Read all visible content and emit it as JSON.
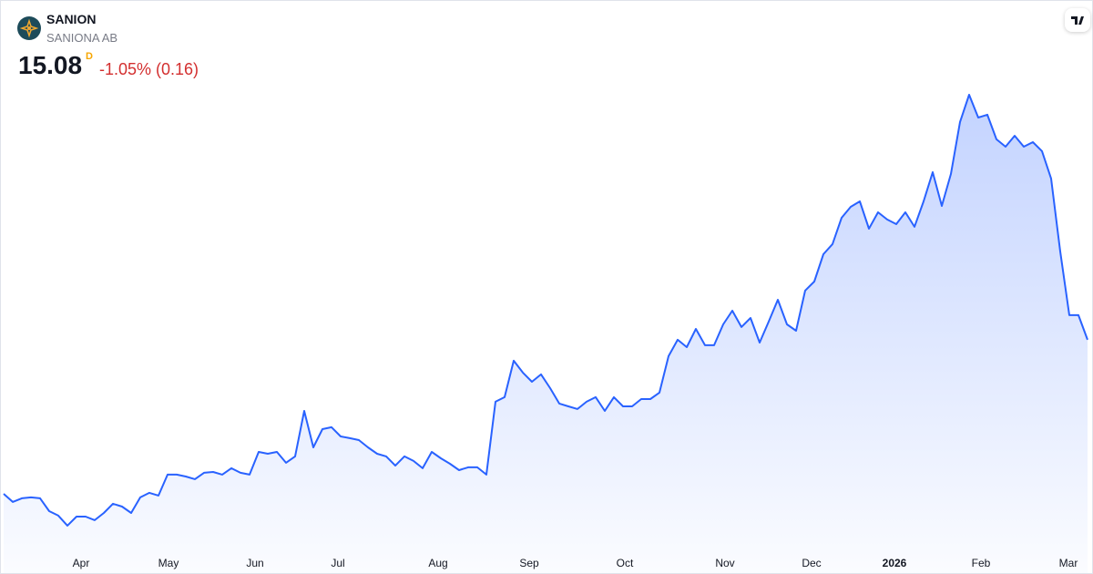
{
  "header": {
    "symbol": "SANION",
    "name": "SANIONA AB",
    "price": "15.08",
    "interval": "D",
    "change": "-1.05% (0.16)"
  },
  "chart_data": {
    "type": "area",
    "color": "#2962ff",
    "values": [
      5.2,
      4.68,
      4.91,
      4.97,
      4.91,
      4.09,
      3.8,
      3.16,
      3.74,
      3.74,
      3.51,
      3.97,
      4.56,
      4.38,
      3.97,
      4.97,
      5.26,
      5.09,
      6.43,
      6.43,
      6.31,
      6.14,
      6.55,
      6.6,
      6.43,
      6.84,
      6.55,
      6.43,
      7.89,
      7.77,
      7.89,
      7.19,
      7.6,
      10.52,
      8.18,
      9.35,
      9.47,
      8.88,
      8.77,
      8.65,
      8.18,
      7.77,
      7.6,
      7.01,
      7.6,
      7.31,
      6.84,
      7.89,
      7.48,
      7.13,
      6.72,
      6.9,
      6.9,
      6.43,
      11.11,
      11.4,
      13.74,
      12.98,
      12.39,
      12.86,
      11.98,
      10.99,
      10.81,
      10.64,
      11.11,
      11.4,
      10.52,
      11.4,
      10.81,
      10.81,
      11.28,
      11.28,
      11.69,
      14.03,
      15.08,
      14.61,
      15.78,
      14.73,
      14.73,
      16.07,
      16.95,
      15.9,
      16.48,
      14.9,
      16.25,
      17.65,
      16.07,
      15.66,
      18.24,
      18.82,
      20.57,
      21.22,
      22.91,
      23.61,
      23.96,
      22.21,
      23.26,
      22.8,
      22.5,
      23.26,
      22.33,
      23.96,
      25.83,
      23.67,
      25.72,
      29.05,
      30.8,
      29.34,
      29.52,
      27.94,
      27.47,
      28.17,
      27.47,
      27.76,
      27.18,
      25.43,
      20.75,
      16.66,
      16.66,
      15.08
    ],
    "xlim": [
      0,
      119
    ],
    "xticks": [
      {
        "value": 8.5,
        "label": "Apr"
      },
      {
        "value": 18.1,
        "label": "May"
      },
      {
        "value": 27.6,
        "label": "Jun"
      },
      {
        "value": 36.7,
        "label": "Jul"
      },
      {
        "value": 47.7,
        "label": "Aug"
      },
      {
        "value": 57.7,
        "label": "Sep"
      },
      {
        "value": 68.2,
        "label": "Oct"
      },
      {
        "value": 79.2,
        "label": "Nov"
      },
      {
        "value": 88.7,
        "label": "Dec"
      },
      {
        "value": 97.8,
        "label": "2026"
      },
      {
        "value": 107.3,
        "label": "Feb"
      },
      {
        "value": 116.9,
        "label": "Mar"
      }
    ],
    "ylim": [
      1.75,
      31.56
    ]
  }
}
